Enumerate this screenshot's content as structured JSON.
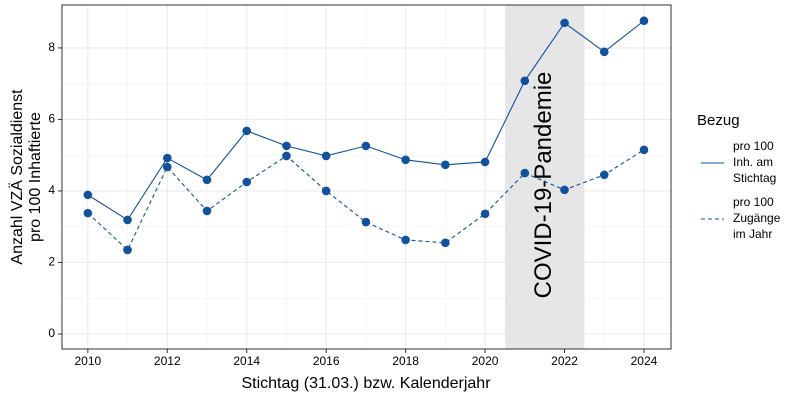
{
  "chart_data": {
    "type": "line",
    "x_label": "Stichtag (31.03.) bzw. Kalenderjahr",
    "y_label": "Anzahl VZÄ Sozialdienst\npro 100 Inhaftierte",
    "x": [
      2010,
      2011,
      2012,
      2013,
      2014,
      2015,
      2016,
      2017,
      2018,
      2019,
      2020,
      2021,
      2022,
      2023,
      2024
    ],
    "series": [
      {
        "name": "pro 100\nInh. am\nStichtag",
        "color": "#12519c",
        "linestyle": "solid",
        "values": [
          3.89,
          3.19,
          4.92,
          4.31,
          5.68,
          5.26,
          4.98,
          5.26,
          4.87,
          4.73,
          4.81,
          7.08,
          8.7,
          7.89,
          8.76
        ]
      },
      {
        "name": "pro 100\nZugänge\nim Jahr",
        "color": "#12519c",
        "linestyle": "dashed",
        "values": [
          3.38,
          2.35,
          4.67,
          3.44,
          4.25,
          4.98,
          4.0,
          3.13,
          2.63,
          2.55,
          3.36,
          4.5,
          4.03,
          4.45,
          5.15
        ]
      }
    ],
    "shade": {
      "xmin": 2020.5,
      "xmax": 2022.5,
      "label": "COVID-19-Pandemie",
      "color": "#e3e3e3"
    },
    "xlim": [
      2009.35,
      2024.68
    ],
    "xticks": [
      2010,
      2012,
      2014,
      2016,
      2018,
      2020,
      2022,
      2024
    ],
    "ylim": [
      -0.42,
      9.2
    ],
    "yticks": [
      0,
      2,
      4,
      6,
      8
    ],
    "grid": true,
    "legend_title": "Bezug",
    "legend_position": "right"
  }
}
